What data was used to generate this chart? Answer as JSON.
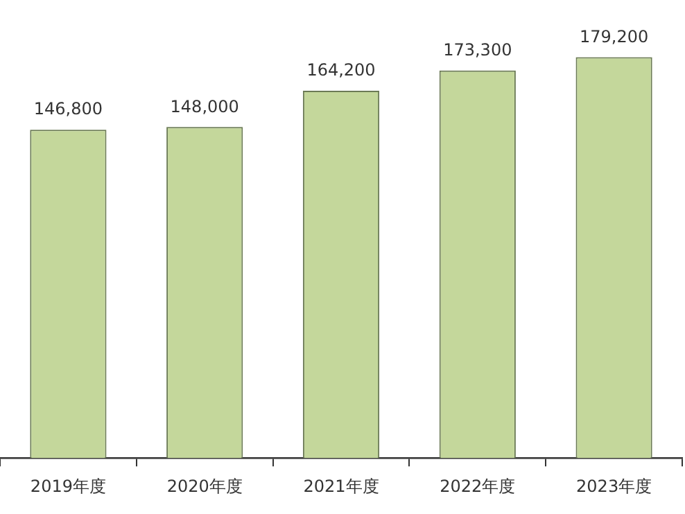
{
  "chart_data": {
    "type": "bar",
    "categories": [
      "2019年度",
      "2020年度",
      "2021年度",
      "2022年度",
      "2023年度"
    ],
    "values": [
      146800,
      148000,
      164200,
      173300,
      179200
    ],
    "color": "#c4d79b",
    "value_labels": [
      "146,800",
      "148,000",
      "164,200",
      "173,300",
      "179,200"
    ],
    "grid": false,
    "legend": false
  }
}
